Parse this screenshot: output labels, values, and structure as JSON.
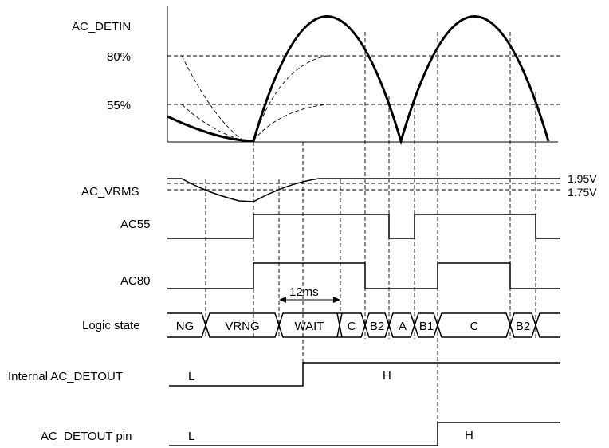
{
  "signals": {
    "ac_detin": "AC_DETIN",
    "ac_vrms": "AC_VRMS",
    "ac55": "AC55",
    "ac80": "AC80",
    "logic_state": "Logic state",
    "internal_ac_detout": "Internal AC_DETOUT",
    "ac_detout_pin": "AC_DETOUT pin"
  },
  "thresholds": {
    "pct80": "80%",
    "pct55": "55%",
    "v_high": "1.95V",
    "v_low": "1.75V"
  },
  "timing": {
    "wait_time": "12ms"
  },
  "logic_states": [
    "NG",
    "VRNG",
    "WAIT",
    "C",
    "B2",
    "A",
    "B1",
    "C",
    "B2"
  ],
  "levels": {
    "internal_low": "L",
    "internal_high": "H",
    "pin_low": "L",
    "pin_high": "H"
  }
}
